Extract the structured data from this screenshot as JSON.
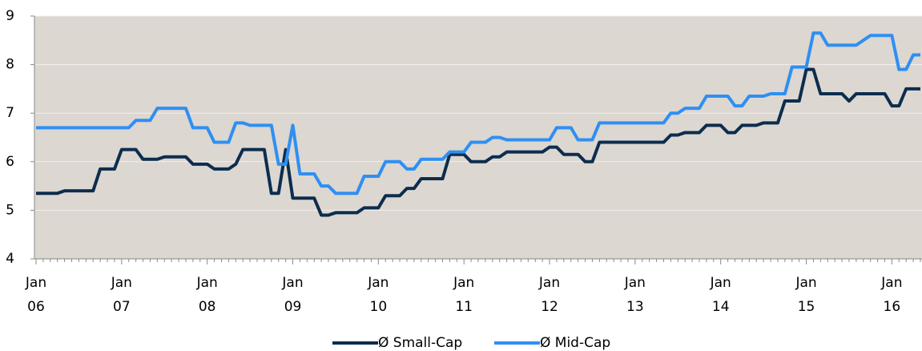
{
  "chart_data": {
    "type": "line",
    "categories": [
      "Jan\n06",
      null,
      null,
      null,
      null,
      null,
      null,
      null,
      null,
      null,
      null,
      null,
      "Jan\n07",
      null,
      null,
      null,
      null,
      null,
      null,
      null,
      null,
      null,
      null,
      null,
      "Jan\n08",
      null,
      null,
      null,
      null,
      null,
      null,
      null,
      null,
      null,
      null,
      null,
      "Jan\n09",
      null,
      null,
      null,
      null,
      null,
      null,
      null,
      null,
      null,
      null,
      null,
      "Jan\n10",
      null,
      null,
      null,
      null,
      null,
      null,
      null,
      null,
      null,
      null,
      null,
      "Jan\n11",
      null,
      null,
      null,
      null,
      null,
      null,
      null,
      null,
      null,
      null,
      null,
      "Jan\n12",
      null,
      null,
      null,
      null,
      null,
      null,
      null,
      null,
      null,
      null,
      null,
      "Jan\n13",
      null,
      null,
      null,
      null,
      null,
      null,
      null,
      null,
      null,
      null,
      null,
      "Jan\n14",
      null,
      null,
      null,
      null,
      null,
      null,
      null,
      null,
      null,
      null,
      null,
      "Jan\n15",
      null,
      null,
      null,
      null,
      null,
      null,
      null,
      null,
      null,
      null,
      null,
      "Jan\n16",
      null,
      null,
      null,
      null
    ],
    "series": [
      {
        "name": "Ø Small-Cap",
        "color": "#0c2d4e",
        "values": [
          5.35,
          5.35,
          5.35,
          5.35,
          5.4,
          5.4,
          5.4,
          5.4,
          5.4,
          5.85,
          5.85,
          5.85,
          6.25,
          6.25,
          6.25,
          6.05,
          6.05,
          6.05,
          6.1,
          6.1,
          6.1,
          6.1,
          5.95,
          5.95,
          5.95,
          5.85,
          5.85,
          5.85,
          5.95,
          6.25,
          6.25,
          6.25,
          6.25,
          5.35,
          5.35,
          6.25,
          5.25,
          5.25,
          5.25,
          5.25,
          4.9,
          4.9,
          4.95,
          4.95,
          4.95,
          4.95,
          5.05,
          5.05,
          5.05,
          5.3,
          5.3,
          5.3,
          5.45,
          5.45,
          5.65,
          5.65,
          5.65,
          5.65,
          6.15,
          6.15,
          6.15,
          6.0,
          6.0,
          6.0,
          6.1,
          6.1,
          6.2,
          6.2,
          6.2,
          6.2,
          6.2,
          6.2,
          6.3,
          6.3,
          6.15,
          6.15,
          6.15,
          6.0,
          6.0,
          6.4,
          6.4,
          6.4,
          6.4,
          6.4,
          6.4,
          6.4,
          6.4,
          6.4,
          6.4,
          6.55,
          6.55,
          6.6,
          6.6,
          6.6,
          6.75,
          6.75,
          6.75,
          6.6,
          6.6,
          6.75,
          6.75,
          6.75,
          6.8,
          6.8,
          6.8,
          7.25,
          7.25,
          7.25,
          7.9,
          7.9,
          7.4,
          7.4,
          7.4,
          7.4,
          7.25,
          7.4,
          7.4,
          7.4,
          7.4,
          7.4,
          7.15,
          7.15,
          7.5,
          7.5,
          7.5
        ]
      },
      {
        "name": "Ø Mid-Cap",
        "color": "#2f8ff2",
        "values": [
          6.7,
          6.7,
          6.7,
          6.7,
          6.7,
          6.7,
          6.7,
          6.7,
          6.7,
          6.7,
          6.7,
          6.7,
          6.7,
          6.7,
          6.85,
          6.85,
          6.85,
          7.1,
          7.1,
          7.1,
          7.1,
          7.1,
          6.7,
          6.7,
          6.7,
          6.4,
          6.4,
          6.4,
          6.8,
          6.8,
          6.75,
          6.75,
          6.75,
          6.75,
          5.95,
          5.95,
          6.75,
          5.75,
          5.75,
          5.75,
          5.5,
          5.5,
          5.35,
          5.35,
          5.35,
          5.35,
          5.7,
          5.7,
          5.7,
          6.0,
          6.0,
          6.0,
          5.85,
          5.85,
          6.05,
          6.05,
          6.05,
          6.05,
          6.2,
          6.2,
          6.2,
          6.4,
          6.4,
          6.4,
          6.5,
          6.5,
          6.45,
          6.45,
          6.45,
          6.45,
          6.45,
          6.45,
          6.45,
          6.7,
          6.7,
          6.7,
          6.45,
          6.45,
          6.45,
          6.8,
          6.8,
          6.8,
          6.8,
          6.8,
          6.8,
          6.8,
          6.8,
          6.8,
          6.8,
          7.0,
          7.0,
          7.1,
          7.1,
          7.1,
          7.35,
          7.35,
          7.35,
          7.35,
          7.15,
          7.15,
          7.35,
          7.35,
          7.35,
          7.4,
          7.4,
          7.4,
          7.95,
          7.95,
          7.95,
          8.65,
          8.65,
          8.4,
          8.4,
          8.4,
          8.4,
          8.4,
          8.5,
          8.6,
          8.6,
          8.6,
          8.6,
          7.9,
          7.9,
          8.2,
          8.2
        ]
      }
    ],
    "ylim": [
      4,
      9
    ],
    "yticks": [
      4,
      5,
      6,
      7,
      8,
      9
    ],
    "grid": true
  }
}
